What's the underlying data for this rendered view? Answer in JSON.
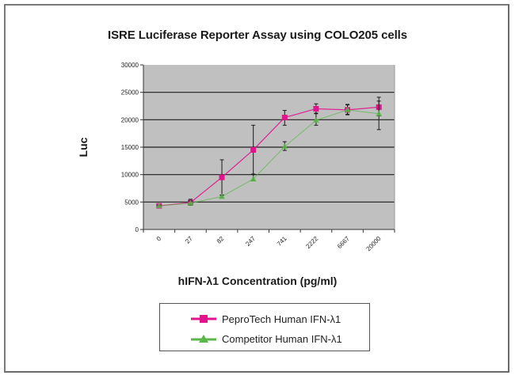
{
  "chart_data": {
    "type": "line",
    "title": "ISRE Luciferase Reporter Assay using COLO205 cells",
    "xlabel": "hIFN-λ1 Concentration (pg/ml)",
    "ylabel": "Luc",
    "categories": [
      "0",
      "27",
      "82",
      "247",
      "741",
      "2222",
      "6667",
      "20000"
    ],
    "ylim": [
      0,
      30000
    ],
    "yticks": [
      0,
      5000,
      10000,
      15000,
      20000,
      25000,
      30000
    ],
    "ytick_labels": [
      "0",
      "5000",
      "10000",
      "15000",
      "20000",
      "25000",
      "30000"
    ],
    "grid": true,
    "plot_background": "#c0c0c0",
    "legend_position": "bottom",
    "series": [
      {
        "name": "PeproTech Human IFN-λ1",
        "color": "#e0148c",
        "marker": "square",
        "values": [
          4300,
          4900,
          9500,
          14500,
          20400,
          22000,
          21800,
          22300
        ],
        "error_low": [
          4200,
          4500,
          6200,
          10100,
          19000,
          21200,
          20900,
          20700
        ],
        "error_high": [
          4400,
          5500,
          12700,
          19000,
          21700,
          22900,
          22800,
          24100
        ]
      },
      {
        "name": "Competitor Human IFN-λ1",
        "color": "#5ab84a",
        "marker": "triangle",
        "values": [
          4300,
          4800,
          6000,
          9200,
          15100,
          19900,
          21800,
          21100
        ],
        "error_low": [
          4200,
          4400,
          5800,
          8900,
          14400,
          19000,
          21000,
          18200
        ],
        "error_high": [
          4400,
          5200,
          6300,
          10000,
          16000,
          21100,
          22700,
          23400
        ]
      }
    ]
  },
  "legend": {
    "items": [
      {
        "label": "PeproTech Human IFN-λ1",
        "color": "#e0148c",
        "marker": "square"
      },
      {
        "label": "Competitor Human IFN-λ1",
        "color": "#5ab84a",
        "marker": "triangle"
      }
    ]
  }
}
